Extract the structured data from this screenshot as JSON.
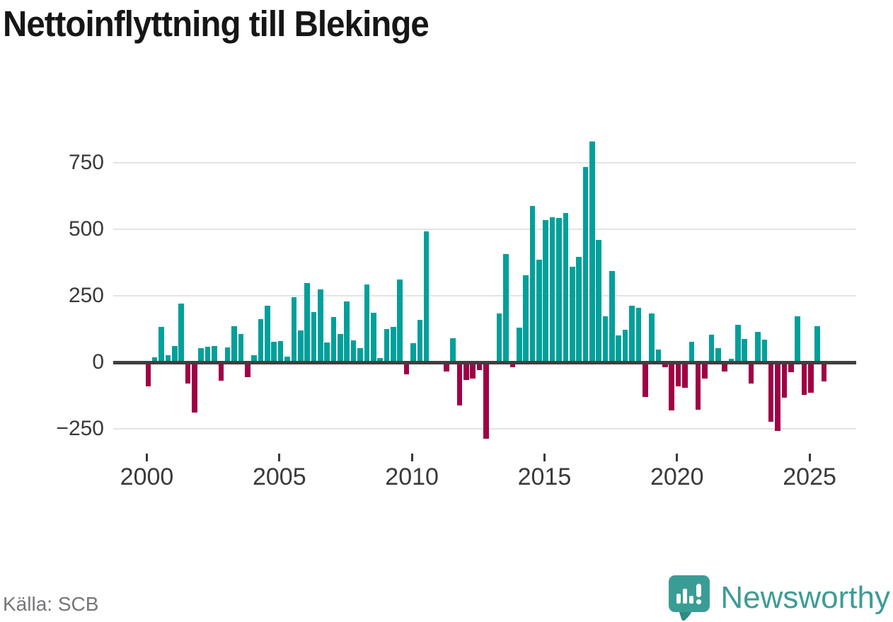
{
  "title": "Nettoinflyttning till Blekinge",
  "source": "Källa: SCB",
  "branding": {
    "name": "Newsworthy",
    "icon": "newsworthy-speech-bubble-chart-icon",
    "color": "#3e9c95"
  },
  "chart_data": {
    "type": "bar",
    "title": "Nettoinflyttning till Blekinge",
    "xlabel": "",
    "ylabel": "",
    "x_unit": "quarter",
    "start_period": "2000 Q1",
    "end_period": "2025 Q3",
    "values": [
      -90,
      18,
      133,
      27,
      62,
      222,
      -80,
      -190,
      53,
      58,
      61,
      -68,
      57,
      135,
      106,
      -55,
      27,
      163,
      213,
      78,
      81,
      20,
      244,
      120,
      297,
      188,
      275,
      74,
      171,
      106,
      229,
      82,
      54,
      292,
      186,
      15,
      124,
      133,
      312,
      -45,
      72,
      159,
      492,
      0,
      0,
      -35,
      90,
      -161,
      -67,
      -60,
      -28,
      -287,
      0,
      183,
      407,
      -19,
      130,
      326,
      587,
      386,
      534,
      545,
      543,
      560,
      358,
      395,
      734,
      830,
      459,
      174,
      342,
      100,
      122,
      214,
      206,
      -130,
      183,
      49,
      -19,
      -182,
      -90,
      -97,
      78,
      -177,
      -62,
      105,
      54,
      -35,
      12,
      140,
      87,
      -80,
      115,
      85,
      -223,
      -259,
      -132,
      -37,
      174,
      -123,
      -115,
      136,
      -71
    ],
    "x_ticks": [
      2000,
      2005,
      2010,
      2015,
      2020,
      2025
    ],
    "x_tick_labels": [
      "2000",
      "2005",
      "2010",
      "2015",
      "2020",
      "2025"
    ],
    "y_ticks": [
      -250,
      0,
      250,
      500,
      750
    ],
    "y_tick_labels": [
      "−250",
      "0",
      "250",
      "500",
      "750"
    ],
    "ylim": [
      -300,
      860
    ],
    "grid": true,
    "legend": false,
    "positive_color": "#00a09b",
    "negative_color": "#a00045"
  }
}
